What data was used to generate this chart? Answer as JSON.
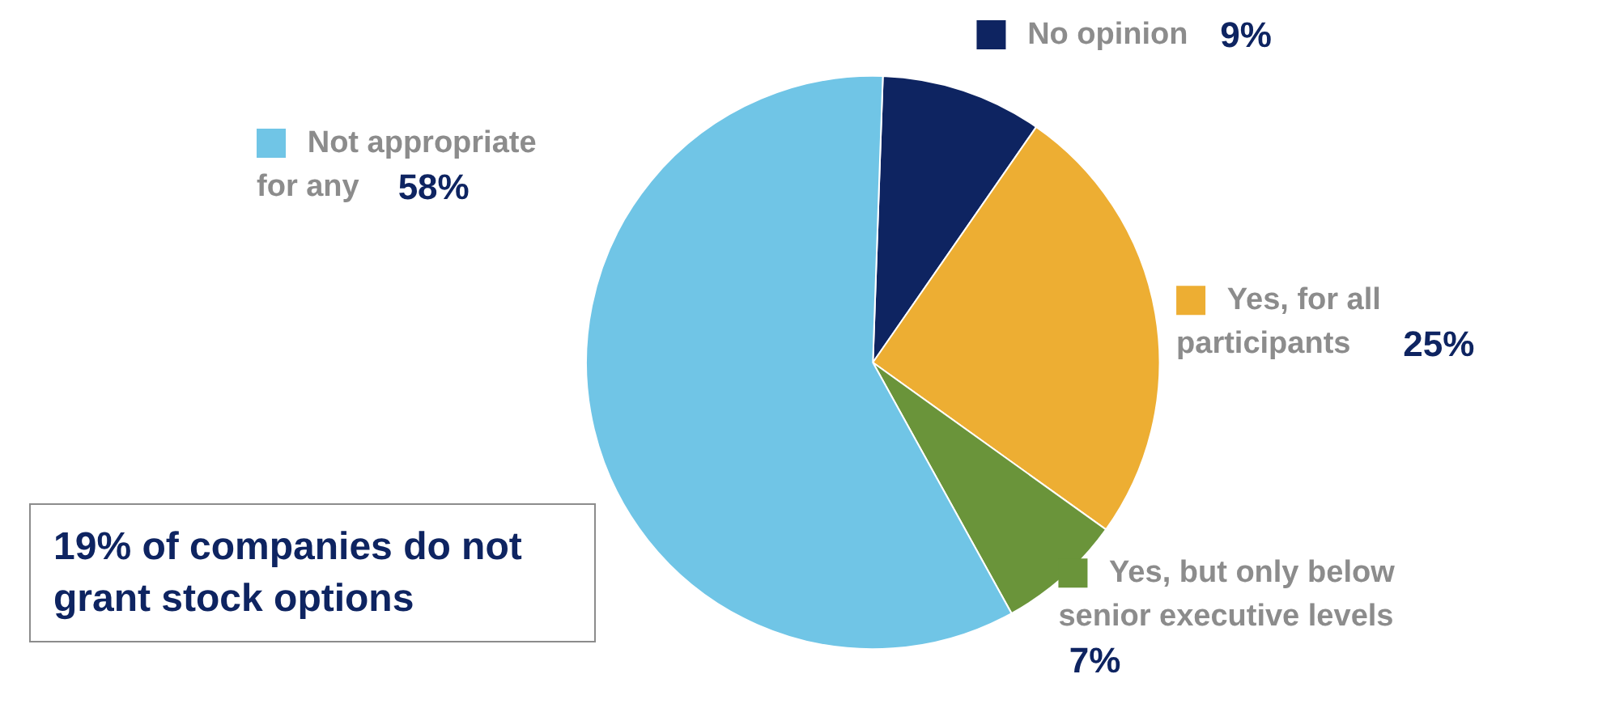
{
  "chart_data": {
    "type": "pie",
    "categories": [
      "No opinion",
      "Yes, for all participants",
      "Yes, but only below senior executive levels",
      "Not appropriate for any"
    ],
    "values": [
      9,
      25,
      7,
      58
    ],
    "value_labels": [
      "9%",
      "25%",
      "7%",
      "58%"
    ],
    "colors": [
      "#0e2461",
      "#edae33",
      "#6a943a",
      "#70c5e6"
    ],
    "annotations": [
      "19% of companies do not grant stock options"
    ],
    "legend": "top left"
  }
}
